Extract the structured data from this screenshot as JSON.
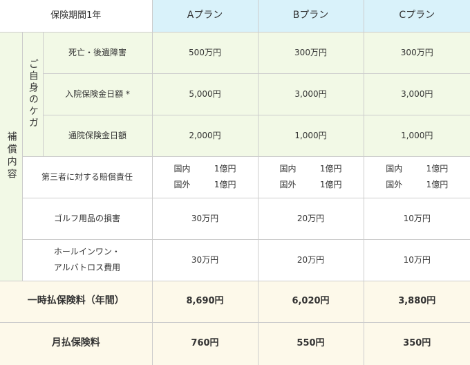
{
  "header": {
    "period": "保険期間1年",
    "plans": [
      "Aプラン",
      "Bプラン",
      "Cプラン"
    ]
  },
  "category": {
    "main": "補償内容",
    "sub": "ご自身のケガ"
  },
  "rows": [
    {
      "label": "死亡・後遺障害",
      "values": [
        "500万円",
        "300万円",
        "300万円"
      ]
    },
    {
      "label": "入院保険金日額 *",
      "values": [
        "5,000円",
        "3,000円",
        "3,000円"
      ]
    },
    {
      "label": "通院保険金日額",
      "values": [
        "2,000円",
        "1,000円",
        "1,000円"
      ]
    }
  ],
  "liability": {
    "label": "第三者に対する賠償責任",
    "plans": [
      {
        "domestic_label": "国内",
        "domestic_value": "1億円",
        "overseas_label": "国外",
        "overseas_value": "1億円"
      },
      {
        "domestic_label": "国内",
        "domestic_value": "1億円",
        "overseas_label": "国外",
        "overseas_value": "1億円"
      },
      {
        "domestic_label": "国内",
        "domestic_value": "1億円",
        "overseas_label": "国外",
        "overseas_value": "1億円"
      }
    ]
  },
  "golf_damage": {
    "label": "ゴルフ用品の損害",
    "values": [
      "30万円",
      "20万円",
      "10万円"
    ]
  },
  "hole_in_one": {
    "label_line1": "ホールインワン・",
    "label_line2": "アルバトロス費用",
    "values": [
      "30万円",
      "20万円",
      "10万円"
    ]
  },
  "lump_sum": {
    "label": "一時払保険料（年間）",
    "values": [
      "8,690円",
      "6,020円",
      "3,880円"
    ]
  },
  "monthly": {
    "label": "月払保険料",
    "values": [
      "760円",
      "550円",
      "350円"
    ]
  },
  "colors": {
    "header_plan_bg": "#d9f2fa",
    "category_main_bg": "#e7f5b7",
    "injury_rows_bg": "#f2f9e6",
    "premium_rows_bg": "#fdf9ea",
    "border": "#cccccc"
  }
}
